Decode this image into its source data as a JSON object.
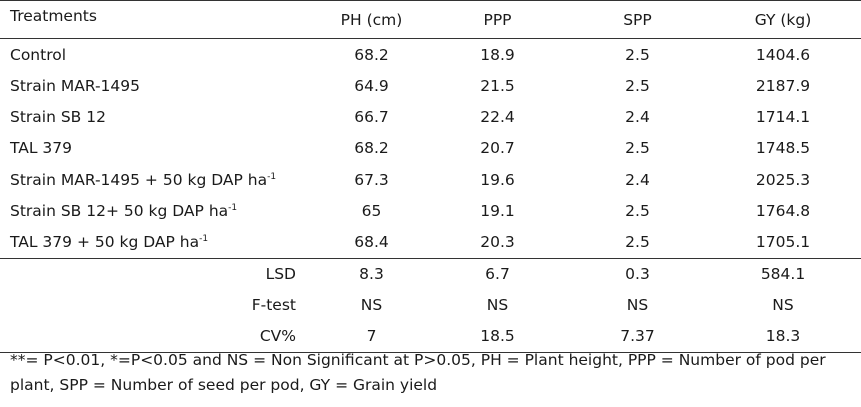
{
  "table": {
    "headers": [
      "Treatments",
      "PH (cm)",
      "PPP",
      "SPP",
      "GY (kg)"
    ],
    "rows": [
      {
        "treatment": "Control",
        "suffix": "",
        "ph": "68.2",
        "ppp": "18.9",
        "spp": "2.5",
        "gy": "1404.6"
      },
      {
        "treatment": "Strain MAR-1495",
        "suffix": "",
        "ph": "64.9",
        "ppp": "21.5",
        "spp": "2.5",
        "gy": "2187.9"
      },
      {
        "treatment": "Strain SB 12",
        "suffix": "",
        "ph": "66.7",
        "ppp": "22.4",
        "spp": "2.4",
        "gy": "1714.1"
      },
      {
        "treatment": "TAL 379",
        "suffix": "",
        "ph": "68.2",
        "ppp": "20.7",
        "spp": "2.5",
        "gy": "1748.5"
      },
      {
        "treatment": "Strain MAR-1495 + 50 kg DAP ha",
        "suffix": "-1",
        "ph": "67.3",
        "ppp": "19.6",
        "spp": "2.4",
        "gy": "2025.3"
      },
      {
        "treatment": "Strain SB 12+ 50 kg DAP ha",
        "suffix": "-1",
        "ph": "65",
        "ppp": "19.1",
        "spp": "2.5",
        "gy": "1764.8"
      },
      {
        "treatment": "TAL 379 + 50 kg DAP ha",
        "suffix": "-1",
        "ph": "68.4",
        "ppp": "20.3",
        "spp": "2.5",
        "gy": "1705.1"
      }
    ],
    "stats": [
      {
        "label": "LSD",
        "ph": "8.3",
        "ppp": "6.7",
        "spp": "0.3",
        "gy": "584.1"
      },
      {
        "label": "F-test",
        "ph": "NS",
        "ppp": "NS",
        "spp": "NS",
        "gy": "NS"
      },
      {
        "label": "CV%",
        "ph": "7",
        "ppp": "18.5",
        "spp": "7.37",
        "gy": "18.3"
      }
    ]
  },
  "footnote": "**= P<0.01, *=P<0.05 and NS = Non Significant at P>0.05,  PH = Plant height, PPP = Number of pod per plant, SPP = Number of seed per pod, GY = Grain yield"
}
